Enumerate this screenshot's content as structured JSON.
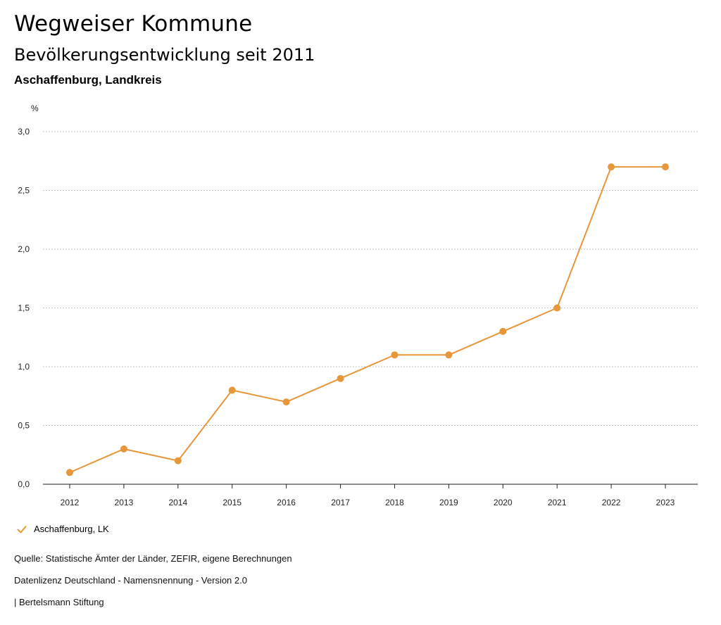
{
  "header": {
    "title": "Wegweiser Kommune",
    "subtitle": "Bevölkerungsentwicklung seit 2011",
    "region": "Aschaffenburg, Landkreis"
  },
  "chart_data": {
    "type": "line",
    "unit_label": "%",
    "x": [
      "2012",
      "2013",
      "2014",
      "2015",
      "2016",
      "2017",
      "2018",
      "2019",
      "2020",
      "2021",
      "2022",
      "2023"
    ],
    "series": [
      {
        "name": "Aschaffenburg, LK",
        "color": "#e8963a",
        "values": [
          0.1,
          0.3,
          0.2,
          0.8,
          0.7,
          0.9,
          1.1,
          1.1,
          1.3,
          1.5,
          2.7,
          2.7
        ]
      }
    ],
    "ylim": [
      0,
      3
    ],
    "yticks": [
      "0,0",
      "0,5",
      "1,0",
      "1,5",
      "2,0",
      "2,5",
      "3,0"
    ],
    "grid": true,
    "legend_position": "bottom-left"
  },
  "legend": {
    "label": "Aschaffenburg, LK",
    "icon": "check-icon"
  },
  "footer": {
    "source": "Quelle: Statistische Ämter der Länder, ZEFIR, eigene Berechnungen",
    "license": "Datenlizenz Deutschland - Namensnennung - Version 2.0",
    "publisher": "| Bertelsmann Stiftung"
  }
}
